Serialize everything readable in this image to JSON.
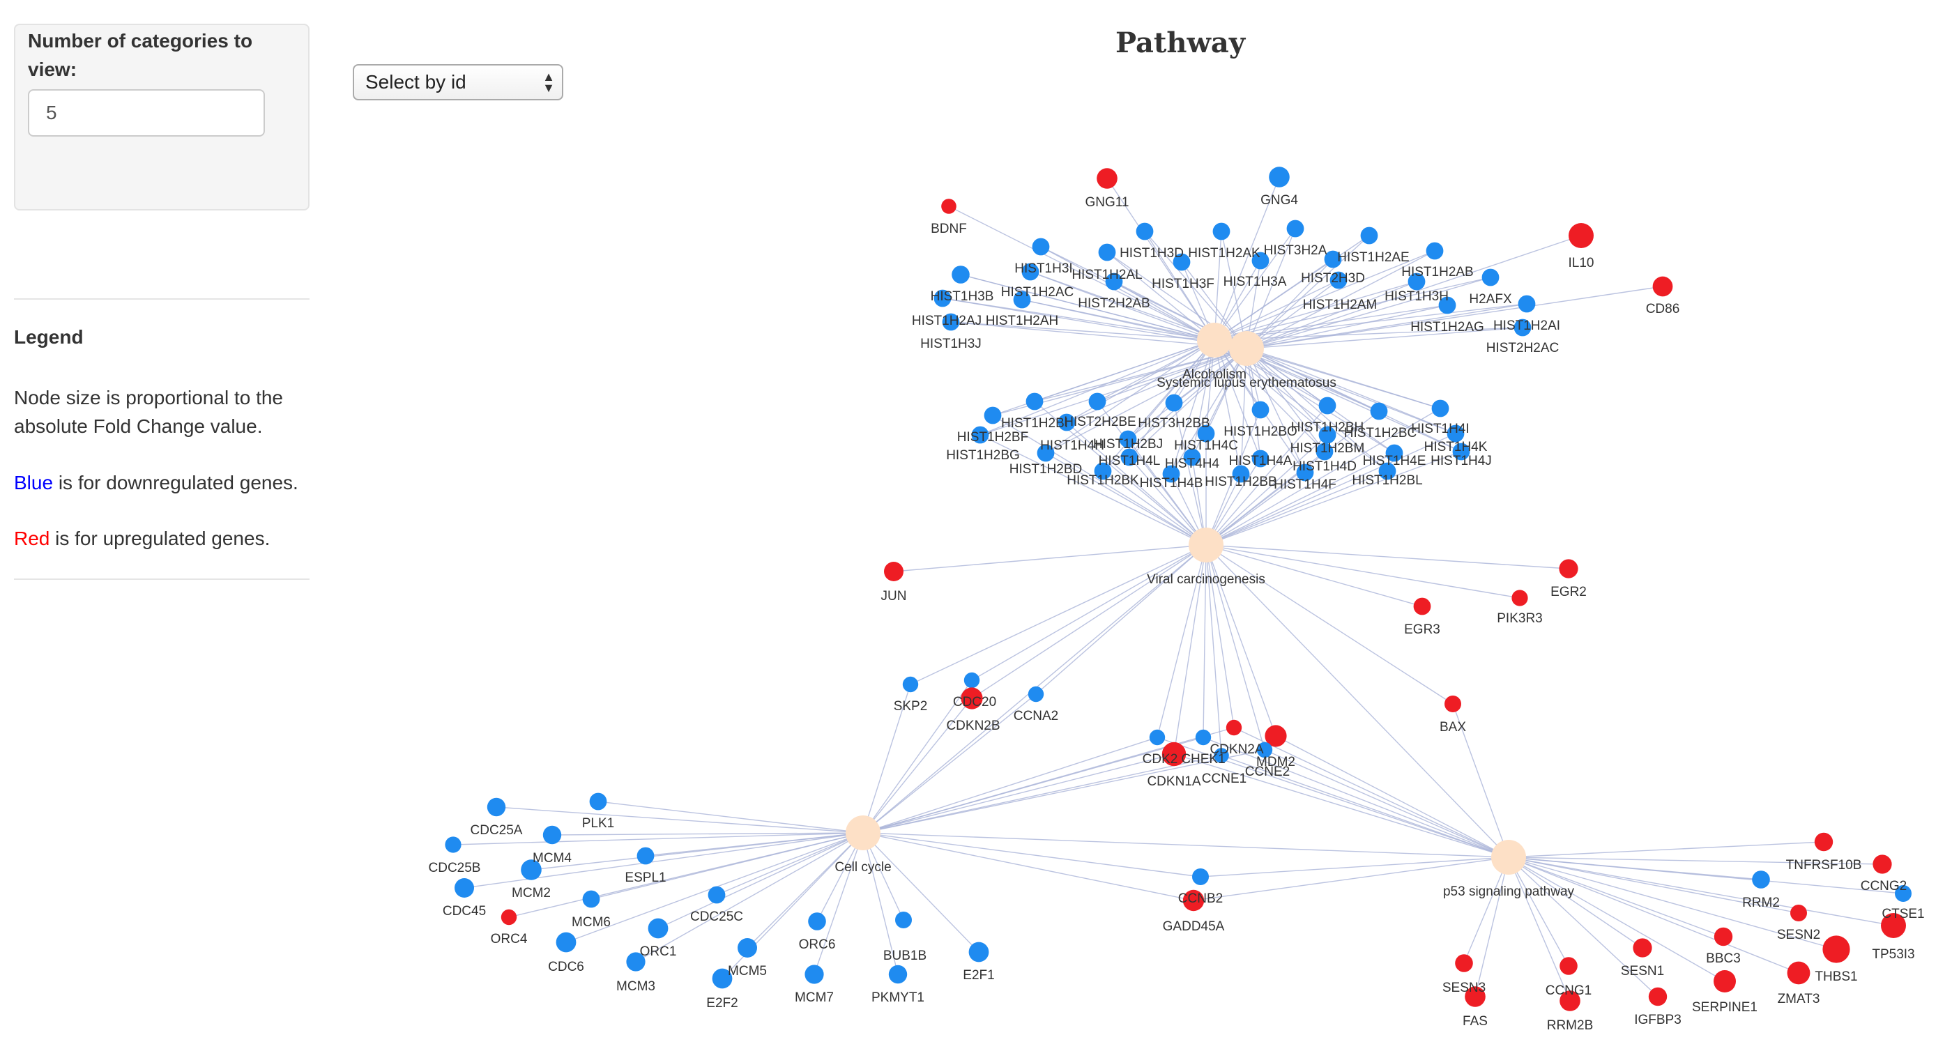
{
  "sidebar": {
    "categories_label": "Number of categories to view:",
    "categories_value": "5"
  },
  "legend": {
    "title": "Legend",
    "size_note": "Node size is proportional to the absolute Fold Change value.",
    "blue_word": "Blue",
    "blue_rest": " is for downregulated genes.",
    "red_word": "Red",
    "red_rest": " is for upregulated genes."
  },
  "select": {
    "value": "Select by id"
  },
  "title": "Pathway",
  "colors": {
    "down": "#1f8bf0",
    "up": "#ee1d24",
    "pathway": "#fde0c6",
    "edge": "#aab4d8",
    "blue_text": "#0000ff",
    "red_text": "#ff0000"
  },
  "network": {
    "pathways": [
      "Alcoholism",
      "Systemic lupus erythematosus",
      "Viral carcinogenesis",
      "Cell cycle",
      "p53 signaling pathway"
    ],
    "genes": [
      {
        "id": "GNG11",
        "reg": "up",
        "fc": 2.2,
        "pathways": [
          0
        ]
      },
      {
        "id": "GNG4",
        "reg": "down",
        "fc": 2.2,
        "pathways": [
          0
        ]
      },
      {
        "id": "BDNF",
        "reg": "up",
        "fc": 1.2,
        "pathways": [
          0
        ]
      },
      {
        "id": "IL10",
        "reg": "up",
        "fc": 3.0,
        "pathways": [
          1
        ]
      },
      {
        "id": "CD86",
        "reg": "up",
        "fc": 2.1,
        "pathways": [
          1
        ]
      },
      {
        "id": "HIST1H3D",
        "reg": "down",
        "fc": 1.6,
        "pathways": [
          0,
          1
        ]
      },
      {
        "id": "HIST1H2AK",
        "reg": "down",
        "fc": 1.6,
        "pathways": [
          0,
          1
        ]
      },
      {
        "id": "HIST3H2A",
        "reg": "down",
        "fc": 1.6,
        "pathways": [
          0,
          1
        ]
      },
      {
        "id": "HIST1H2AE",
        "reg": "down",
        "fc": 1.6,
        "pathways": [
          0,
          1
        ]
      },
      {
        "id": "HIST1H3I",
        "reg": "down",
        "fc": 1.6,
        "pathways": [
          0,
          1
        ]
      },
      {
        "id": "HIST1H2AL",
        "reg": "down",
        "fc": 1.6,
        "pathways": [
          0,
          1
        ]
      },
      {
        "id": "HIST1H3F",
        "reg": "down",
        "fc": 1.6,
        "pathways": [
          0,
          1
        ]
      },
      {
        "id": "HIST1H3A",
        "reg": "down",
        "fc": 1.6,
        "pathways": [
          0,
          1
        ]
      },
      {
        "id": "HIST2H3D",
        "reg": "down",
        "fc": 1.6,
        "pathways": [
          0,
          1
        ]
      },
      {
        "id": "HIST1H2AB",
        "reg": "down",
        "fc": 1.6,
        "pathways": [
          0,
          1
        ]
      },
      {
        "id": "HIST1H2AC",
        "reg": "down",
        "fc": 1.6,
        "pathways": [
          0,
          1
        ]
      },
      {
        "id": "HIST1H3B",
        "reg": "down",
        "fc": 1.7,
        "pathways": [
          0,
          1
        ]
      },
      {
        "id": "HIST2H2AB",
        "reg": "down",
        "fc": 1.6,
        "pathways": [
          0,
          1
        ]
      },
      {
        "id": "HIST1H2AM",
        "reg": "down",
        "fc": 1.6,
        "pathways": [
          0,
          1
        ]
      },
      {
        "id": "HIST1H3H",
        "reg": "down",
        "fc": 1.6,
        "pathways": [
          0,
          1
        ]
      },
      {
        "id": "H2AFX",
        "reg": "down",
        "fc": 1.6,
        "pathways": [
          0,
          1
        ]
      },
      {
        "id": "HIST1H2AJ",
        "reg": "down",
        "fc": 1.6,
        "pathways": [
          0,
          1
        ]
      },
      {
        "id": "HIST1H2AH",
        "reg": "down",
        "fc": 1.6,
        "pathways": [
          0,
          1
        ]
      },
      {
        "id": "HIST1H2AG",
        "reg": "down",
        "fc": 1.6,
        "pathways": [
          0,
          1
        ]
      },
      {
        "id": "HIST1H2AI",
        "reg": "down",
        "fc": 1.6,
        "pathways": [
          0,
          1
        ]
      },
      {
        "id": "HIST1H3J",
        "reg": "down",
        "fc": 1.6,
        "pathways": [
          0,
          1
        ]
      },
      {
        "id": "HIST2H2AC",
        "reg": "down",
        "fc": 1.6,
        "pathways": [
          0,
          1
        ]
      },
      {
        "id": "HIST1H2BF",
        "reg": "down",
        "fc": 1.6,
        "pathways": [
          0,
          1,
          2
        ]
      },
      {
        "id": "HIST1H2BI",
        "reg": "down",
        "fc": 1.6,
        "pathways": [
          0,
          1,
          2
        ]
      },
      {
        "id": "HIST2H2BE",
        "reg": "down",
        "fc": 1.6,
        "pathways": [
          0,
          1,
          2
        ]
      },
      {
        "id": "HIST3H2BB",
        "reg": "down",
        "fc": 1.6,
        "pathways": [
          0,
          1,
          2
        ]
      },
      {
        "id": "HIST1H2BO",
        "reg": "down",
        "fc": 1.6,
        "pathways": [
          0,
          1,
          2
        ]
      },
      {
        "id": "HIST1H2BH",
        "reg": "down",
        "fc": 1.6,
        "pathways": [
          0,
          1,
          2
        ]
      },
      {
        "id": "HIST1H2BC",
        "reg": "down",
        "fc": 1.6,
        "pathways": [
          0,
          1,
          2
        ]
      },
      {
        "id": "HIST1H4I",
        "reg": "down",
        "fc": 1.6,
        "pathways": [
          0,
          1,
          2
        ]
      },
      {
        "id": "HIST1H2BG",
        "reg": "down",
        "fc": 1.6,
        "pathways": [
          0,
          1,
          2
        ]
      },
      {
        "id": "HIST1H4H",
        "reg": "down",
        "fc": 1.6,
        "pathways": [
          0,
          1,
          2
        ]
      },
      {
        "id": "HIST1H2BJ",
        "reg": "down",
        "fc": 1.6,
        "pathways": [
          0,
          1,
          2
        ]
      },
      {
        "id": "HIST1H4C",
        "reg": "down",
        "fc": 1.6,
        "pathways": [
          0,
          1,
          2
        ]
      },
      {
        "id": "HIST1H2BM",
        "reg": "down",
        "fc": 1.6,
        "pathways": [
          0,
          1,
          2
        ]
      },
      {
        "id": "HIST1H4K",
        "reg": "down",
        "fc": 1.6,
        "pathways": [
          0,
          1,
          2
        ]
      },
      {
        "id": "HIST1H2BD",
        "reg": "down",
        "fc": 1.6,
        "pathways": [
          0,
          1,
          2
        ]
      },
      {
        "id": "HIST1H4L",
        "reg": "down",
        "fc": 1.6,
        "pathways": [
          0,
          1,
          2
        ]
      },
      {
        "id": "HIST4H4",
        "reg": "down",
        "fc": 1.6,
        "pathways": [
          0,
          1,
          2
        ]
      },
      {
        "id": "HIST1H4A",
        "reg": "down",
        "fc": 1.6,
        "pathways": [
          0,
          1,
          2
        ]
      },
      {
        "id": "HIST1H4D",
        "reg": "down",
        "fc": 1.6,
        "pathways": [
          0,
          1,
          2
        ]
      },
      {
        "id": "HIST1H4E",
        "reg": "down",
        "fc": 1.6,
        "pathways": [
          0,
          1,
          2
        ]
      },
      {
        "id": "HIST1H4J",
        "reg": "down",
        "fc": 1.6,
        "pathways": [
          0,
          1,
          2
        ]
      },
      {
        "id": "HIST1H2BK",
        "reg": "down",
        "fc": 1.6,
        "pathways": [
          0,
          1,
          2
        ]
      },
      {
        "id": "HIST1H4B",
        "reg": "down",
        "fc": 1.6,
        "pathways": [
          0,
          1,
          2
        ]
      },
      {
        "id": "HIST1H2BB",
        "reg": "down",
        "fc": 1.6,
        "pathways": [
          0,
          1,
          2
        ]
      },
      {
        "id": "HIST1H4F",
        "reg": "down",
        "fc": 1.6,
        "pathways": [
          0,
          1,
          2
        ]
      },
      {
        "id": "HIST1H2BL",
        "reg": "down",
        "fc": 1.6,
        "pathways": [
          0,
          1,
          2
        ]
      },
      {
        "id": "JUN",
        "reg": "up",
        "fc": 2.0,
        "pathways": [
          2
        ]
      },
      {
        "id": "EGR2",
        "reg": "up",
        "fc": 1.9,
        "pathways": [
          2
        ]
      },
      {
        "id": "EGR3",
        "reg": "up",
        "fc": 1.6,
        "pathways": [
          2
        ]
      },
      {
        "id": "PIK3R3",
        "reg": "up",
        "fc": 1.4,
        "pathways": [
          2
        ]
      },
      {
        "id": "SKP2",
        "reg": "down",
        "fc": 1.3,
        "pathways": [
          2,
          3
        ]
      },
      {
        "id": "CDC20",
        "reg": "down",
        "fc": 1.3,
        "pathways": [
          2,
          3
        ]
      },
      {
        "id": "CDKN2B",
        "reg": "up",
        "fc": 2.4,
        "pathways": [
          2,
          3
        ]
      },
      {
        "id": "CCNA2",
        "reg": "down",
        "fc": 1.3,
        "pathways": [
          2,
          3
        ]
      },
      {
        "id": "BAX",
        "reg": "up",
        "fc": 1.5,
        "pathways": [
          2,
          4
        ]
      },
      {
        "id": "CDK2",
        "reg": "down",
        "fc": 1.3,
        "pathways": [
          2,
          3,
          4
        ]
      },
      {
        "id": "CHEK1",
        "reg": "down",
        "fc": 1.3,
        "pathways": [
          2,
          3,
          4
        ]
      },
      {
        "id": "CDKN1A",
        "reg": "up",
        "fc": 2.8,
        "pathways": [
          2,
          3,
          4
        ]
      },
      {
        "id": "CCNE1",
        "reg": "down",
        "fc": 1.2,
        "pathways": [
          2,
          3,
          4
        ]
      },
      {
        "id": "CDKN2A",
        "reg": "up",
        "fc": 1.3,
        "pathways": [
          2,
          3,
          4
        ]
      },
      {
        "id": "MDM2",
        "reg": "up",
        "fc": 2.4,
        "pathways": [
          2,
          4
        ]
      },
      {
        "id": "CCNE2",
        "reg": "down",
        "fc": 1.3,
        "pathways": [
          2,
          3,
          4
        ]
      },
      {
        "id": "CDC25A",
        "reg": "down",
        "fc": 1.8,
        "pathways": [
          3
        ]
      },
      {
        "id": "PLK1",
        "reg": "down",
        "fc": 1.6,
        "pathways": [
          3
        ]
      },
      {
        "id": "CDC25B",
        "reg": "down",
        "fc": 1.4,
        "pathways": [
          3
        ]
      },
      {
        "id": "MCM4",
        "reg": "down",
        "fc": 1.8,
        "pathways": [
          3
        ]
      },
      {
        "id": "ESPL1",
        "reg": "down",
        "fc": 1.6,
        "pathways": [
          3
        ]
      },
      {
        "id": "MCM2",
        "reg": "down",
        "fc": 2.2,
        "pathways": [
          3
        ]
      },
      {
        "id": "CDC45",
        "reg": "down",
        "fc": 2.0,
        "pathways": [
          3
        ]
      },
      {
        "id": "ORC4",
        "reg": "up",
        "fc": 1.3,
        "pathways": [
          3
        ]
      },
      {
        "id": "MCM6",
        "reg": "down",
        "fc": 1.6,
        "pathways": [
          3
        ]
      },
      {
        "id": "CDC25C",
        "reg": "down",
        "fc": 1.6,
        "pathways": [
          3
        ]
      },
      {
        "id": "CDC6",
        "reg": "down",
        "fc": 2.1,
        "pathways": [
          3
        ]
      },
      {
        "id": "ORC1",
        "reg": "down",
        "fc": 2.1,
        "pathways": [
          3
        ]
      },
      {
        "id": "MCM3",
        "reg": "down",
        "fc": 1.9,
        "pathways": [
          3
        ]
      },
      {
        "id": "MCM5",
        "reg": "down",
        "fc": 2.0,
        "pathways": [
          3
        ]
      },
      {
        "id": "E2F2",
        "reg": "down",
        "fc": 2.1,
        "pathways": [
          3
        ]
      },
      {
        "id": "ORC6",
        "reg": "down",
        "fc": 1.7,
        "pathways": [
          3
        ]
      },
      {
        "id": "MCM7",
        "reg": "down",
        "fc": 1.9,
        "pathways": [
          3
        ]
      },
      {
        "id": "BUB1B",
        "reg": "down",
        "fc": 1.5,
        "pathways": [
          3
        ]
      },
      {
        "id": "PKMYT1",
        "reg": "down",
        "fc": 1.8,
        "pathways": [
          3
        ]
      },
      {
        "id": "E2F1",
        "reg": "down",
        "fc": 2.1,
        "pathways": [
          3
        ]
      },
      {
        "id": "CCNB2",
        "reg": "down",
        "fc": 1.5,
        "pathways": [
          3,
          4
        ]
      },
      {
        "id": "GADD45A",
        "reg": "up",
        "fc": 2.3,
        "pathways": [
          3,
          4
        ]
      },
      {
        "id": "TNFRSF10B",
        "reg": "up",
        "fc": 1.8,
        "pathways": [
          4
        ]
      },
      {
        "id": "CCNG2",
        "reg": "up",
        "fc": 1.9,
        "pathways": [
          4
        ]
      },
      {
        "id": "RRM2",
        "reg": "down",
        "fc": 1.7,
        "pathways": [
          4
        ]
      },
      {
        "id": "CTSE1",
        "reg": "down",
        "fc": 1.5,
        "pathways": [
          4
        ]
      },
      {
        "id": "SESN2",
        "reg": "up",
        "fc": 1.5,
        "pathways": [
          4
        ]
      },
      {
        "id": "TP53I3",
        "reg": "up",
        "fc": 3.0,
        "pathways": [
          4
        ]
      },
      {
        "id": "THBS1",
        "reg": "up",
        "fc": 3.4,
        "pathways": [
          4
        ]
      },
      {
        "id": "BBC3",
        "reg": "up",
        "fc": 1.8,
        "pathways": [
          4
        ]
      },
      {
        "id": "ZMAT3",
        "reg": "up",
        "fc": 2.6,
        "pathways": [
          4
        ]
      },
      {
        "id": "SERPINE1",
        "reg": "up",
        "fc": 2.5,
        "pathways": [
          4
        ]
      },
      {
        "id": "SESN1",
        "reg": "up",
        "fc": 1.9,
        "pathways": [
          4
        ]
      },
      {
        "id": "IGFBP3",
        "reg": "up",
        "fc": 1.8,
        "pathways": [
          4
        ]
      },
      {
        "id": "CCNG1",
        "reg": "up",
        "fc": 1.7,
        "pathways": [
          4
        ]
      },
      {
        "id": "RRM2B",
        "reg": "up",
        "fc": 2.2,
        "pathways": [
          4
        ]
      },
      {
        "id": "SESN3",
        "reg": "up",
        "fc": 1.7,
        "pathways": [
          4
        ]
      },
      {
        "id": "FAS",
        "reg": "up",
        "fc": 2.2,
        "pathways": [
          4
        ]
      }
    ]
  }
}
